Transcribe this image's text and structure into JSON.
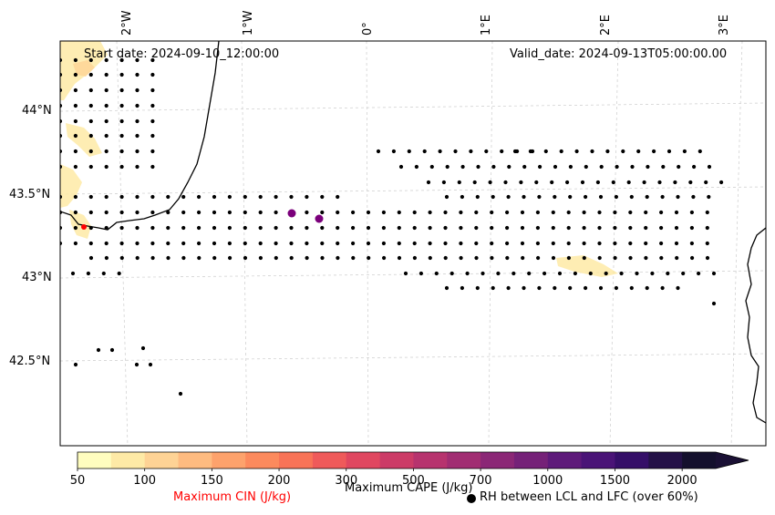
{
  "map": {
    "start_date": "Start date: 2024-09-10_12:00:00",
    "valid_date": "Valid_date: 2024-09-13T05:00:00.00",
    "lon_labels": [
      "2°W",
      "1°W",
      "0°",
      "1°E",
      "2°E",
      "3°E"
    ],
    "lat_labels": [
      "44°N",
      "43.5°N",
      "43°N",
      "42.5°N"
    ],
    "grid": true,
    "dot_color": "#000000",
    "cin_marker_color": "#ff0000",
    "cape_marker_color": "#7b007b",
    "coast_color": "#000000"
  },
  "colorbar": {
    "label": "Maximum CAPE (J/kg)",
    "ticks": [
      "50",
      "100",
      "150",
      "200",
      "300",
      "500",
      "700",
      "1000",
      "1500",
      "2000"
    ],
    "colors": [
      "#fffdbf",
      "#feeaa6",
      "#fed395",
      "#febb80",
      "#fda26c",
      "#fc8a5d",
      "#f87357",
      "#ef5a5a",
      "#e04760",
      "#cc3b67",
      "#b7336e",
      "#a12d72",
      "#8b2776",
      "#752178",
      "#5e1a7a",
      "#4a1477",
      "#350f68",
      "#241147",
      "#14102d"
    ],
    "extend_color": "#1a1034"
  },
  "legend": {
    "cin_label": "Maximum CIN (J/kg)",
    "cin_color": "#ff0000",
    "rh_label": "RH between LCL and LFC (over 60%)"
  }
}
